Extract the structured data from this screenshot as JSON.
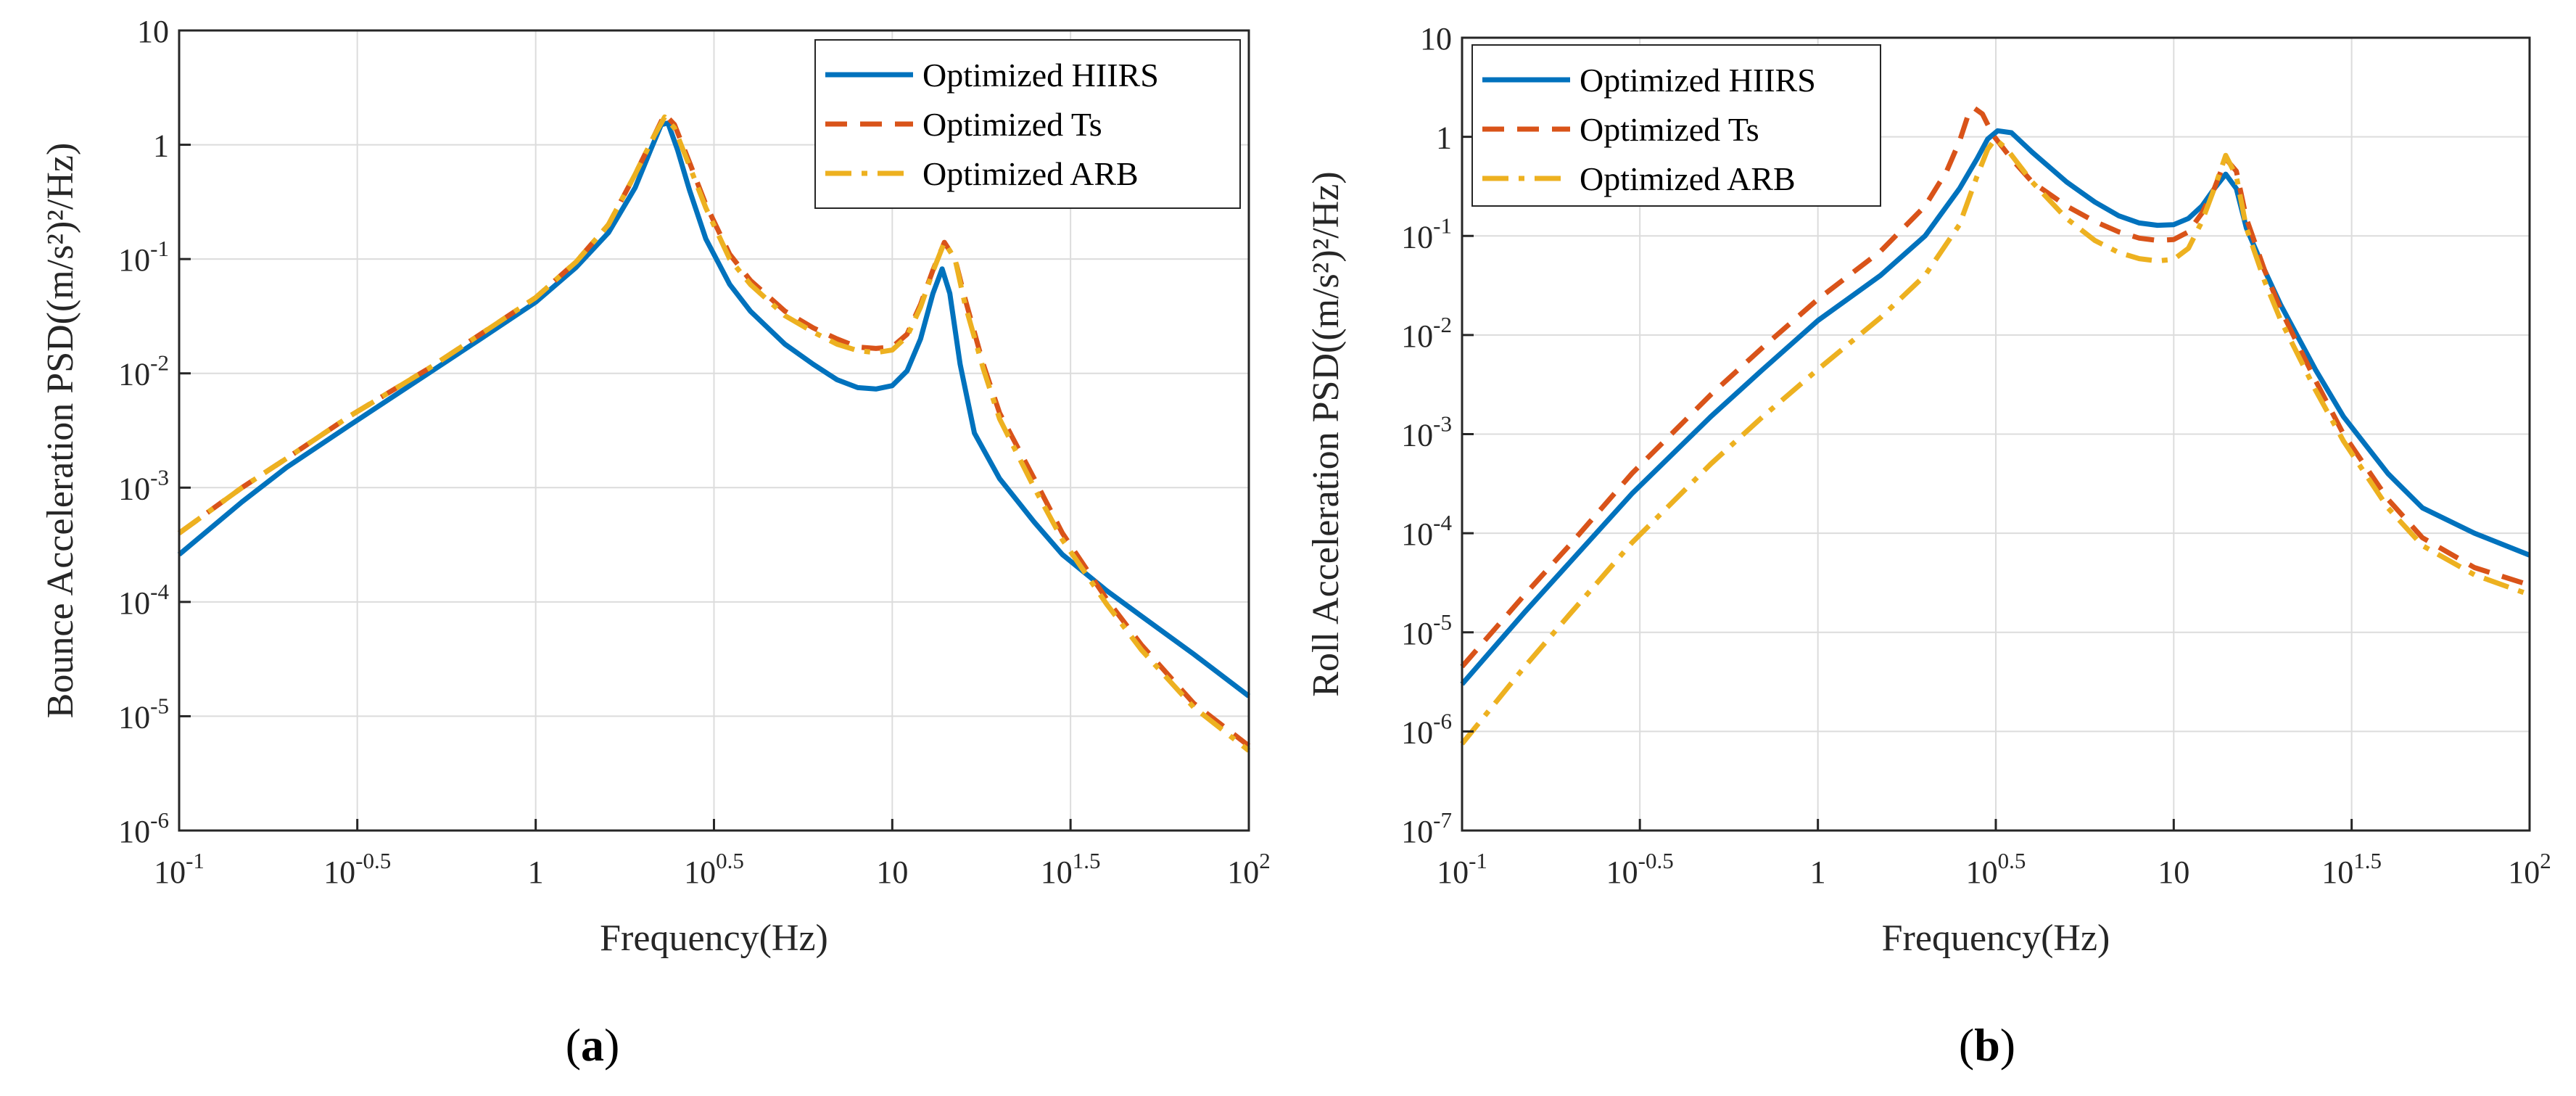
{
  "chart_data": [
    {
      "type": "line",
      "panel": "a",
      "caption": "(a)",
      "caption_letter": "a",
      "xlabel": "Frequency(Hz)",
      "ylabel": "Bounce Acceleration PSD((m/s²)²/Hz)",
      "xscale": "log",
      "yscale": "log",
      "xlim": [
        0.1,
        100
      ],
      "ylim": [
        1e-06,
        10
      ],
      "grid": true,
      "legend_position": "top-right",
      "x_ticks": [
        {
          "value": 0.1,
          "base": "10",
          "exp": "-1"
        },
        {
          "value": 0.316,
          "base": "10",
          "exp": "-0.5"
        },
        {
          "value": 1,
          "base": "1",
          "exp": ""
        },
        {
          "value": 3.162,
          "base": "10",
          "exp": "0.5"
        },
        {
          "value": 10,
          "base": "10",
          "exp": ""
        },
        {
          "value": 31.62,
          "base": "10",
          "exp": "1.5"
        },
        {
          "value": 100,
          "base": "10",
          "exp": "2"
        }
      ],
      "y_ticks": [
        {
          "value": 10,
          "base": "10",
          "exp": ""
        },
        {
          "value": 1,
          "base": "1",
          "exp": ""
        },
        {
          "value": 0.1,
          "base": "10",
          "exp": "-1"
        },
        {
          "value": 0.01,
          "base": "10",
          "exp": "-2"
        },
        {
          "value": 0.001,
          "base": "10",
          "exp": "-3"
        },
        {
          "value": 0.0001,
          "base": "10",
          "exp": "-4"
        },
        {
          "value": 1e-05,
          "base": "10",
          "exp": "-5"
        },
        {
          "value": 1e-06,
          "base": "10",
          "exp": "-6"
        }
      ],
      "series": [
        {
          "name": "Optimized HIIRS",
          "color": "#0072BD",
          "dash": "solid",
          "points": [
            [
              0.1,
              0.00026
            ],
            [
              0.15,
              0.00075
            ],
            [
              0.2,
              0.0015
            ],
            [
              0.3,
              0.0035
            ],
            [
              0.5,
              0.01
            ],
            [
              0.7,
              0.02
            ],
            [
              1.0,
              0.042
            ],
            [
              1.3,
              0.085
            ],
            [
              1.6,
              0.17
            ],
            [
              1.9,
              0.42
            ],
            [
              2.1,
              0.9
            ],
            [
              2.25,
              1.5
            ],
            [
              2.35,
              1.55
            ],
            [
              2.5,
              0.9
            ],
            [
              2.7,
              0.4
            ],
            [
              3.0,
              0.15
            ],
            [
              3.5,
              0.06
            ],
            [
              4.0,
              0.035
            ],
            [
              5.0,
              0.018
            ],
            [
              6.0,
              0.012
            ],
            [
              7.0,
              0.0088
            ],
            [
              8.0,
              0.0075
            ],
            [
              9.0,
              0.0073
            ],
            [
              10.0,
              0.0078
            ],
            [
              11.0,
              0.0105
            ],
            [
              12.0,
              0.02
            ],
            [
              13.0,
              0.05
            ],
            [
              13.8,
              0.082
            ],
            [
              14.5,
              0.05
            ],
            [
              15.5,
              0.012
            ],
            [
              17.0,
              0.003
            ],
            [
              20.0,
              0.0012
            ],
            [
              25.0,
              0.0005
            ],
            [
              30.0,
              0.00026
            ],
            [
              40.0,
              0.000125
            ],
            [
              50.0,
              7.5e-05
            ],
            [
              70.0,
              3.5e-05
            ],
            [
              100.0,
              1.5e-05
            ]
          ]
        },
        {
          "name": "Optimized Ts",
          "color": "#D95319",
          "dash": "dash",
          "points": [
            [
              0.1,
              0.0004
            ],
            [
              0.15,
              0.001
            ],
            [
              0.2,
              0.0018
            ],
            [
              0.3,
              0.0042
            ],
            [
              0.5,
              0.011
            ],
            [
              0.7,
              0.022
            ],
            [
              1.0,
              0.046
            ],
            [
              1.3,
              0.095
            ],
            [
              1.6,
              0.2
            ],
            [
              1.9,
              0.55
            ],
            [
              2.15,
              1.2
            ],
            [
              2.3,
              1.85
            ],
            [
              2.45,
              1.5
            ],
            [
              2.7,
              0.7
            ],
            [
              3.0,
              0.3
            ],
            [
              3.5,
              0.11
            ],
            [
              4.0,
              0.065
            ],
            [
              5.0,
              0.035
            ],
            [
              6.0,
              0.025
            ],
            [
              7.0,
              0.02
            ],
            [
              8.0,
              0.017
            ],
            [
              9.0,
              0.0165
            ],
            [
              10.0,
              0.017
            ],
            [
              11.0,
              0.022
            ],
            [
              12.0,
              0.04
            ],
            [
              13.0,
              0.08
            ],
            [
              14.0,
              0.14
            ],
            [
              15.0,
              0.1
            ],
            [
              16.0,
              0.045
            ],
            [
              18.0,
              0.012
            ],
            [
              20.0,
              0.0045
            ],
            [
              25.0,
              0.0012
            ],
            [
              30.0,
              0.0004
            ],
            [
              40.0,
              0.000105
            ],
            [
              50.0,
              4.2e-05
            ],
            [
              70.0,
              1.3e-05
            ],
            [
              100.0,
              5.5e-06
            ]
          ]
        },
        {
          "name": "Optimized ARB",
          "color": "#EDB120",
          "dash": "dashdot",
          "points": [
            [
              0.1,
              0.0004
            ],
            [
              0.15,
              0.001
            ],
            [
              0.2,
              0.0018
            ],
            [
              0.3,
              0.0042
            ],
            [
              0.5,
              0.011
            ],
            [
              0.7,
              0.022
            ],
            [
              1.0,
              0.046
            ],
            [
              1.3,
              0.095
            ],
            [
              1.6,
              0.2
            ],
            [
              1.9,
              0.55
            ],
            [
              2.15,
              1.2
            ],
            [
              2.3,
              1.75
            ],
            [
              2.45,
              1.4
            ],
            [
              2.7,
              0.65
            ],
            [
              3.0,
              0.28
            ],
            [
              3.5,
              0.1
            ],
            [
              4.0,
              0.06
            ],
            [
              5.0,
              0.032
            ],
            [
              6.0,
              0.023
            ],
            [
              7.0,
              0.018
            ],
            [
              8.0,
              0.0158
            ],
            [
              9.0,
              0.0152
            ],
            [
              10.0,
              0.016
            ],
            [
              11.0,
              0.021
            ],
            [
              12.0,
              0.038
            ],
            [
              13.0,
              0.078
            ],
            [
              14.0,
              0.14
            ],
            [
              15.0,
              0.1
            ],
            [
              16.0,
              0.04
            ],
            [
              18.0,
              0.011
            ],
            [
              20.0,
              0.004
            ],
            [
              25.0,
              0.001
            ],
            [
              30.0,
              0.00035
            ],
            [
              40.0,
              9.5e-05
            ],
            [
              50.0,
              3.8e-05
            ],
            [
              70.0,
              1.2e-05
            ],
            [
              100.0,
              5e-06
            ]
          ]
        }
      ]
    },
    {
      "type": "line",
      "panel": "b",
      "caption": "(b)",
      "caption_letter": "b",
      "xlabel": "Frequency(Hz)",
      "ylabel": "Roll Acceleration PSD((m/s²)²/Hz)",
      "xscale": "log",
      "yscale": "log",
      "xlim": [
        0.1,
        100
      ],
      "ylim": [
        1e-07,
        10
      ],
      "grid": true,
      "legend_position": "top-left",
      "x_ticks": [
        {
          "value": 0.1,
          "base": "10",
          "exp": "-1"
        },
        {
          "value": 0.316,
          "base": "10",
          "exp": "-0.5"
        },
        {
          "value": 1,
          "base": "1",
          "exp": ""
        },
        {
          "value": 3.162,
          "base": "10",
          "exp": "0.5"
        },
        {
          "value": 10,
          "base": "10",
          "exp": ""
        },
        {
          "value": 31.62,
          "base": "10",
          "exp": "1.5"
        },
        {
          "value": 100,
          "base": "10",
          "exp": "2"
        }
      ],
      "y_ticks": [
        {
          "value": 10,
          "base": "10",
          "exp": ""
        },
        {
          "value": 1,
          "base": "1",
          "exp": ""
        },
        {
          "value": 0.1,
          "base": "10",
          "exp": "-1"
        },
        {
          "value": 0.01,
          "base": "10",
          "exp": "-2"
        },
        {
          "value": 0.001,
          "base": "10",
          "exp": "-3"
        },
        {
          "value": 0.0001,
          "base": "10",
          "exp": "-4"
        },
        {
          "value": 1e-05,
          "base": "10",
          "exp": "-5"
        },
        {
          "value": 1e-06,
          "base": "10",
          "exp": "-6"
        },
        {
          "value": 1e-07,
          "base": "10",
          "exp": "-7"
        }
      ],
      "series": [
        {
          "name": "Optimized HIIRS",
          "color": "#0072BD",
          "dash": "solid",
          "points": [
            [
              0.1,
              3e-06
            ],
            [
              0.15,
              1.6e-05
            ],
            [
              0.2,
              5e-05
            ],
            [
              0.3,
              0.00025
            ],
            [
              0.5,
              0.0015
            ],
            [
              0.7,
              0.0045
            ],
            [
              1.0,
              0.014
            ],
            [
              1.5,
              0.04
            ],
            [
              2.0,
              0.1
            ],
            [
              2.5,
              0.3
            ],
            [
              2.8,
              0.6
            ],
            [
              3.0,
              0.95
            ],
            [
              3.2,
              1.15
            ],
            [
              3.5,
              1.1
            ],
            [
              4.0,
              0.7
            ],
            [
              5.0,
              0.35
            ],
            [
              6.0,
              0.22
            ],
            [
              7.0,
              0.16
            ],
            [
              8.0,
              0.135
            ],
            [
              9.0,
              0.128
            ],
            [
              10.0,
              0.13
            ],
            [
              11.0,
              0.15
            ],
            [
              12.0,
              0.2
            ],
            [
              13.0,
              0.3
            ],
            [
              14.0,
              0.42
            ],
            [
              15.0,
              0.3
            ],
            [
              16.0,
              0.12
            ],
            [
              18.0,
              0.045
            ],
            [
              20.0,
              0.02
            ],
            [
              25.0,
              0.0045
            ],
            [
              30.0,
              0.0015
            ],
            [
              40.0,
              0.0004
            ],
            [
              50.0,
              0.00018
            ],
            [
              70.0,
              0.0001
            ],
            [
              100.0,
              6e-05
            ]
          ]
        },
        {
          "name": "Optimized Ts",
          "color": "#D95319",
          "dash": "dash",
          "points": [
            [
              0.1,
              4.5e-06
            ],
            [
              0.15,
              2.4e-05
            ],
            [
              0.2,
              7.5e-05
            ],
            [
              0.3,
              0.0004
            ],
            [
              0.5,
              0.0025
            ],
            [
              0.7,
              0.0075
            ],
            [
              1.0,
              0.023
            ],
            [
              1.5,
              0.07
            ],
            [
              2.0,
              0.2
            ],
            [
              2.3,
              0.45
            ],
            [
              2.5,
              0.9
            ],
            [
              2.65,
              1.7
            ],
            [
              2.75,
              1.95
            ],
            [
              2.9,
              1.7
            ],
            [
              3.1,
              1.05
            ],
            [
              3.5,
              0.6
            ],
            [
              4.0,
              0.35
            ],
            [
              5.0,
              0.2
            ],
            [
              6.0,
              0.14
            ],
            [
              7.0,
              0.11
            ],
            [
              8.0,
              0.095
            ],
            [
              9.0,
              0.09
            ],
            [
              10.0,
              0.092
            ],
            [
              11.0,
              0.11
            ],
            [
              12.0,
              0.17
            ],
            [
              13.0,
              0.3
            ],
            [
              14.0,
              0.6
            ],
            [
              15.0,
              0.45
            ],
            [
              16.0,
              0.15
            ],
            [
              18.0,
              0.045
            ],
            [
              20.0,
              0.018
            ],
            [
              25.0,
              0.0035
            ],
            [
              30.0,
              0.001
            ],
            [
              40.0,
              0.00022
            ],
            [
              50.0,
              9e-05
            ],
            [
              70.0,
              4.5e-05
            ],
            [
              100.0,
              3e-05
            ]
          ]
        },
        {
          "name": "Optimized ARB",
          "color": "#EDB120",
          "dash": "dashdot",
          "points": [
            [
              0.1,
              7.5e-07
            ],
            [
              0.15,
              4.5e-06
            ],
            [
              0.2,
              1.5e-05
            ],
            [
              0.3,
              8e-05
            ],
            [
              0.5,
              0.0005
            ],
            [
              0.7,
              0.0015
            ],
            [
              1.0,
              0.0045
            ],
            [
              1.5,
              0.015
            ],
            [
              2.0,
              0.04
            ],
            [
              2.5,
              0.13
            ],
            [
              2.8,
              0.4
            ],
            [
              3.0,
              0.75
            ],
            [
              3.15,
              0.95
            ],
            [
              3.4,
              0.75
            ],
            [
              4.0,
              0.35
            ],
            [
              5.0,
              0.15
            ],
            [
              6.0,
              0.09
            ],
            [
              7.0,
              0.068
            ],
            [
              8.0,
              0.059
            ],
            [
              9.0,
              0.056
            ],
            [
              10.0,
              0.058
            ],
            [
              11.0,
              0.075
            ],
            [
              12.0,
              0.14
            ],
            [
              13.0,
              0.3
            ],
            [
              14.0,
              0.65
            ],
            [
              15.0,
              0.4
            ],
            [
              16.0,
              0.12
            ],
            [
              18.0,
              0.035
            ],
            [
              20.0,
              0.014
            ],
            [
              25.0,
              0.0028
            ],
            [
              30.0,
              0.00085
            ],
            [
              40.0,
              0.00018
            ],
            [
              50.0,
              7.5e-05
            ],
            [
              70.0,
              3.8e-05
            ],
            [
              100.0,
              2.4e-05
            ]
          ]
        }
      ]
    }
  ]
}
